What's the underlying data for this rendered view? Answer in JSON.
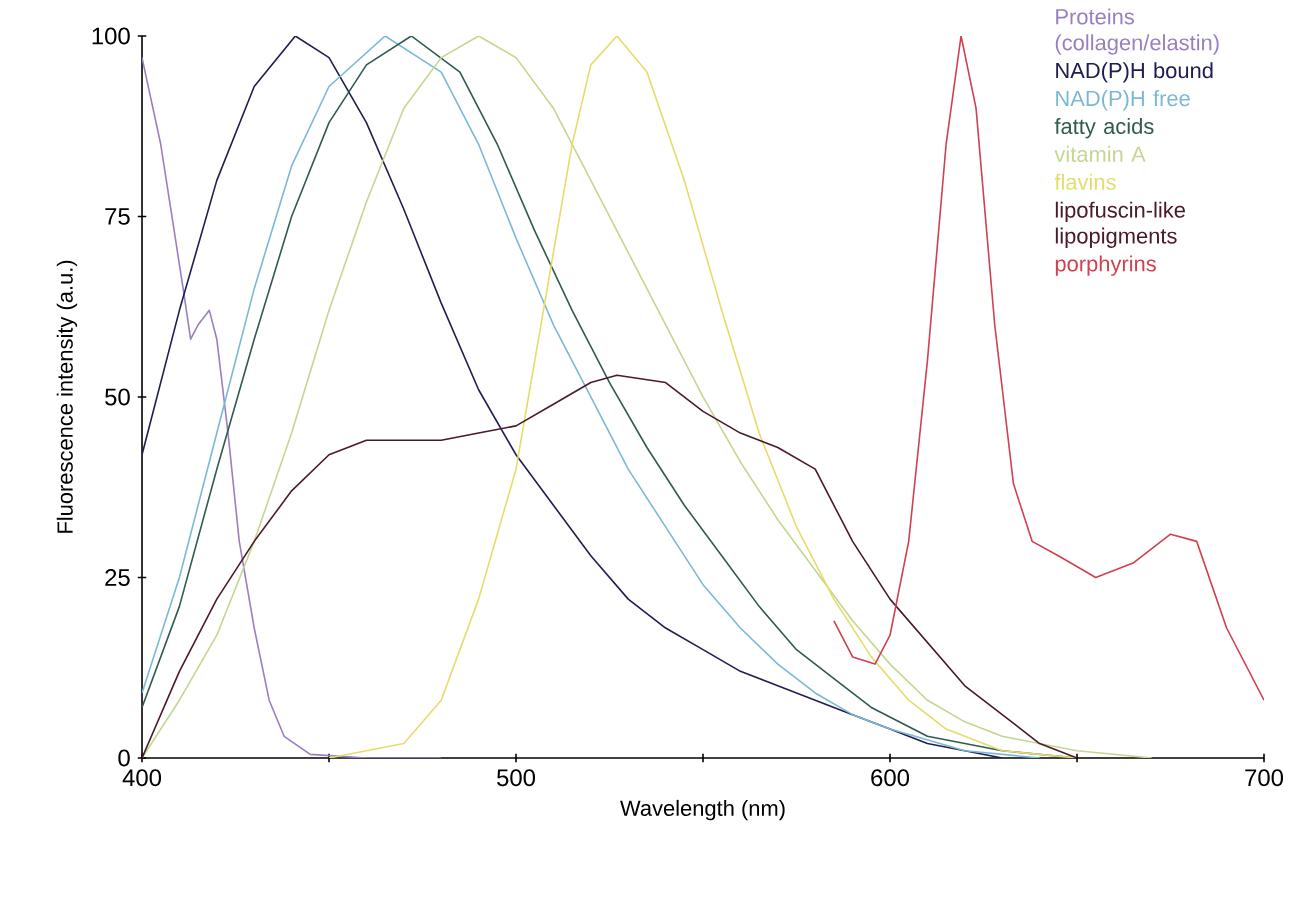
{
  "chart_data": {
    "type": "line",
    "xlabel": "Wavelength (nm)",
    "ylabel": "Fluorescence intensity (a.u.)",
    "xlim": [
      400,
      700
    ],
    "ylim": [
      0,
      100
    ],
    "xticks": [
      400,
      {
        "value": 450,
        "label": null
      },
      500,
      {
        "value": 550,
        "label": null
      },
      600,
      {
        "value": 650,
        "label": null
      },
      700
    ],
    "yticks": [
      0,
      25,
      50,
      75,
      100
    ],
    "grid": false,
    "legend": "top right",
    "marker": "none",
    "line_style": "solid",
    "series": [
      {
        "name": "Proteins (collagen/elastin)",
        "color": "#9a7fc0",
        "x": [
          400,
          405,
          408,
          411,
          413,
          415,
          418,
          420,
          423,
          426,
          430,
          434,
          438,
          445,
          460,
          480
        ],
        "values": [
          97,
          85,
          75,
          65,
          58,
          60,
          62,
          58,
          45,
          30,
          18,
          8,
          3,
          0.5,
          0,
          0
        ]
      },
      {
        "name": "NAD(P)H bound",
        "color": "#1e1e50",
        "x": [
          400,
          410,
          420,
          430,
          441,
          450,
          460,
          470,
          480,
          490,
          500,
          510,
          520,
          530,
          540,
          550,
          560,
          570,
          580,
          590,
          600,
          610,
          620,
          630
        ],
        "values": [
          42,
          62,
          80,
          93,
          100,
          97,
          88,
          76,
          63,
          51,
          42,
          35,
          28,
          22,
          18,
          15,
          12,
          10,
          8,
          6,
          4,
          2,
          1,
          0
        ]
      },
      {
        "name": "NAD(P)H free",
        "color": "#7ab8d8",
        "x": [
          400,
          410,
          420,
          430,
          440,
          450,
          465,
          480,
          490,
          500,
          510,
          520,
          530,
          540,
          550,
          560,
          570,
          580,
          590,
          600,
          620,
          640
        ],
        "values": [
          9,
          25,
          45,
          65,
          82,
          93,
          100,
          95,
          85,
          72,
          60,
          50,
          40,
          32,
          24,
          18,
          13,
          9,
          6,
          4,
          1,
          0
        ]
      },
      {
        "name": "fatty acids",
        "color": "#2f5a50",
        "x": [
          400,
          410,
          420,
          430,
          440,
          450,
          460,
          472,
          485,
          495,
          505,
          515,
          525,
          535,
          545,
          555,
          565,
          575,
          585,
          595,
          610,
          630,
          650
        ],
        "values": [
          7,
          21,
          40,
          58,
          75,
          88,
          96,
          100,
          95,
          85,
          73,
          62,
          52,
          43,
          35,
          28,
          21,
          15,
          11,
          7,
          3,
          1,
          0
        ]
      },
      {
        "name": "vitamin A",
        "color": "#c4d690",
        "x": [
          400,
          410,
          420,
          430,
          440,
          450,
          460,
          470,
          480,
          490,
          500,
          510,
          520,
          530,
          540,
          550,
          560,
          570,
          580,
          590,
          600,
          610,
          620,
          630,
          650,
          670
        ],
        "values": [
          0,
          8,
          17,
          30,
          45,
          62,
          77,
          90,
          97,
          100,
          97,
          90,
          80,
          70,
          60,
          50,
          41,
          33,
          26,
          19,
          13,
          8,
          5,
          3,
          1,
          0
        ]
      },
      {
        "name": "flavins",
        "color": "#e6dc6a",
        "x": [
          450,
          470,
          480,
          490,
          500,
          510,
          515,
          520,
          527,
          535,
          545,
          555,
          565,
          575,
          585,
          595,
          605,
          615,
          630,
          650
        ],
        "values": [
          0,
          2,
          8,
          22,
          40,
          70,
          85,
          96,
          100,
          95,
          80,
          62,
          45,
          32,
          22,
          14,
          8,
          4,
          1,
          0
        ]
      },
      {
        "name": "lipofuscin-like lipopigments",
        "color": "#4a1a2a",
        "x": [
          400,
          410,
          420,
          430,
          440,
          450,
          460,
          470,
          480,
          490,
          500,
          510,
          520,
          527,
          540,
          550,
          560,
          570,
          580,
          585,
          590,
          600,
          610,
          620,
          630,
          640,
          650
        ],
        "values": [
          0,
          12,
          22,
          30,
          37,
          42,
          44,
          44,
          44,
          45,
          46,
          49,
          52,
          53,
          52,
          48,
          45,
          43,
          40,
          35,
          30,
          22,
          16,
          10,
          6,
          2,
          0
        ]
      },
      {
        "name": "porphyrins",
        "color": "#d04050",
        "x": [
          585,
          590,
          596,
          600,
          605,
          610,
          615,
          619,
          623,
          628,
          633,
          638,
          645,
          655,
          665,
          675,
          682,
          690,
          700
        ],
        "values": [
          19,
          14,
          13,
          17,
          30,
          55,
          85,
          100,
          90,
          60,
          38,
          30,
          28,
          25,
          27,
          31,
          30,
          18,
          8
        ]
      }
    ]
  }
}
